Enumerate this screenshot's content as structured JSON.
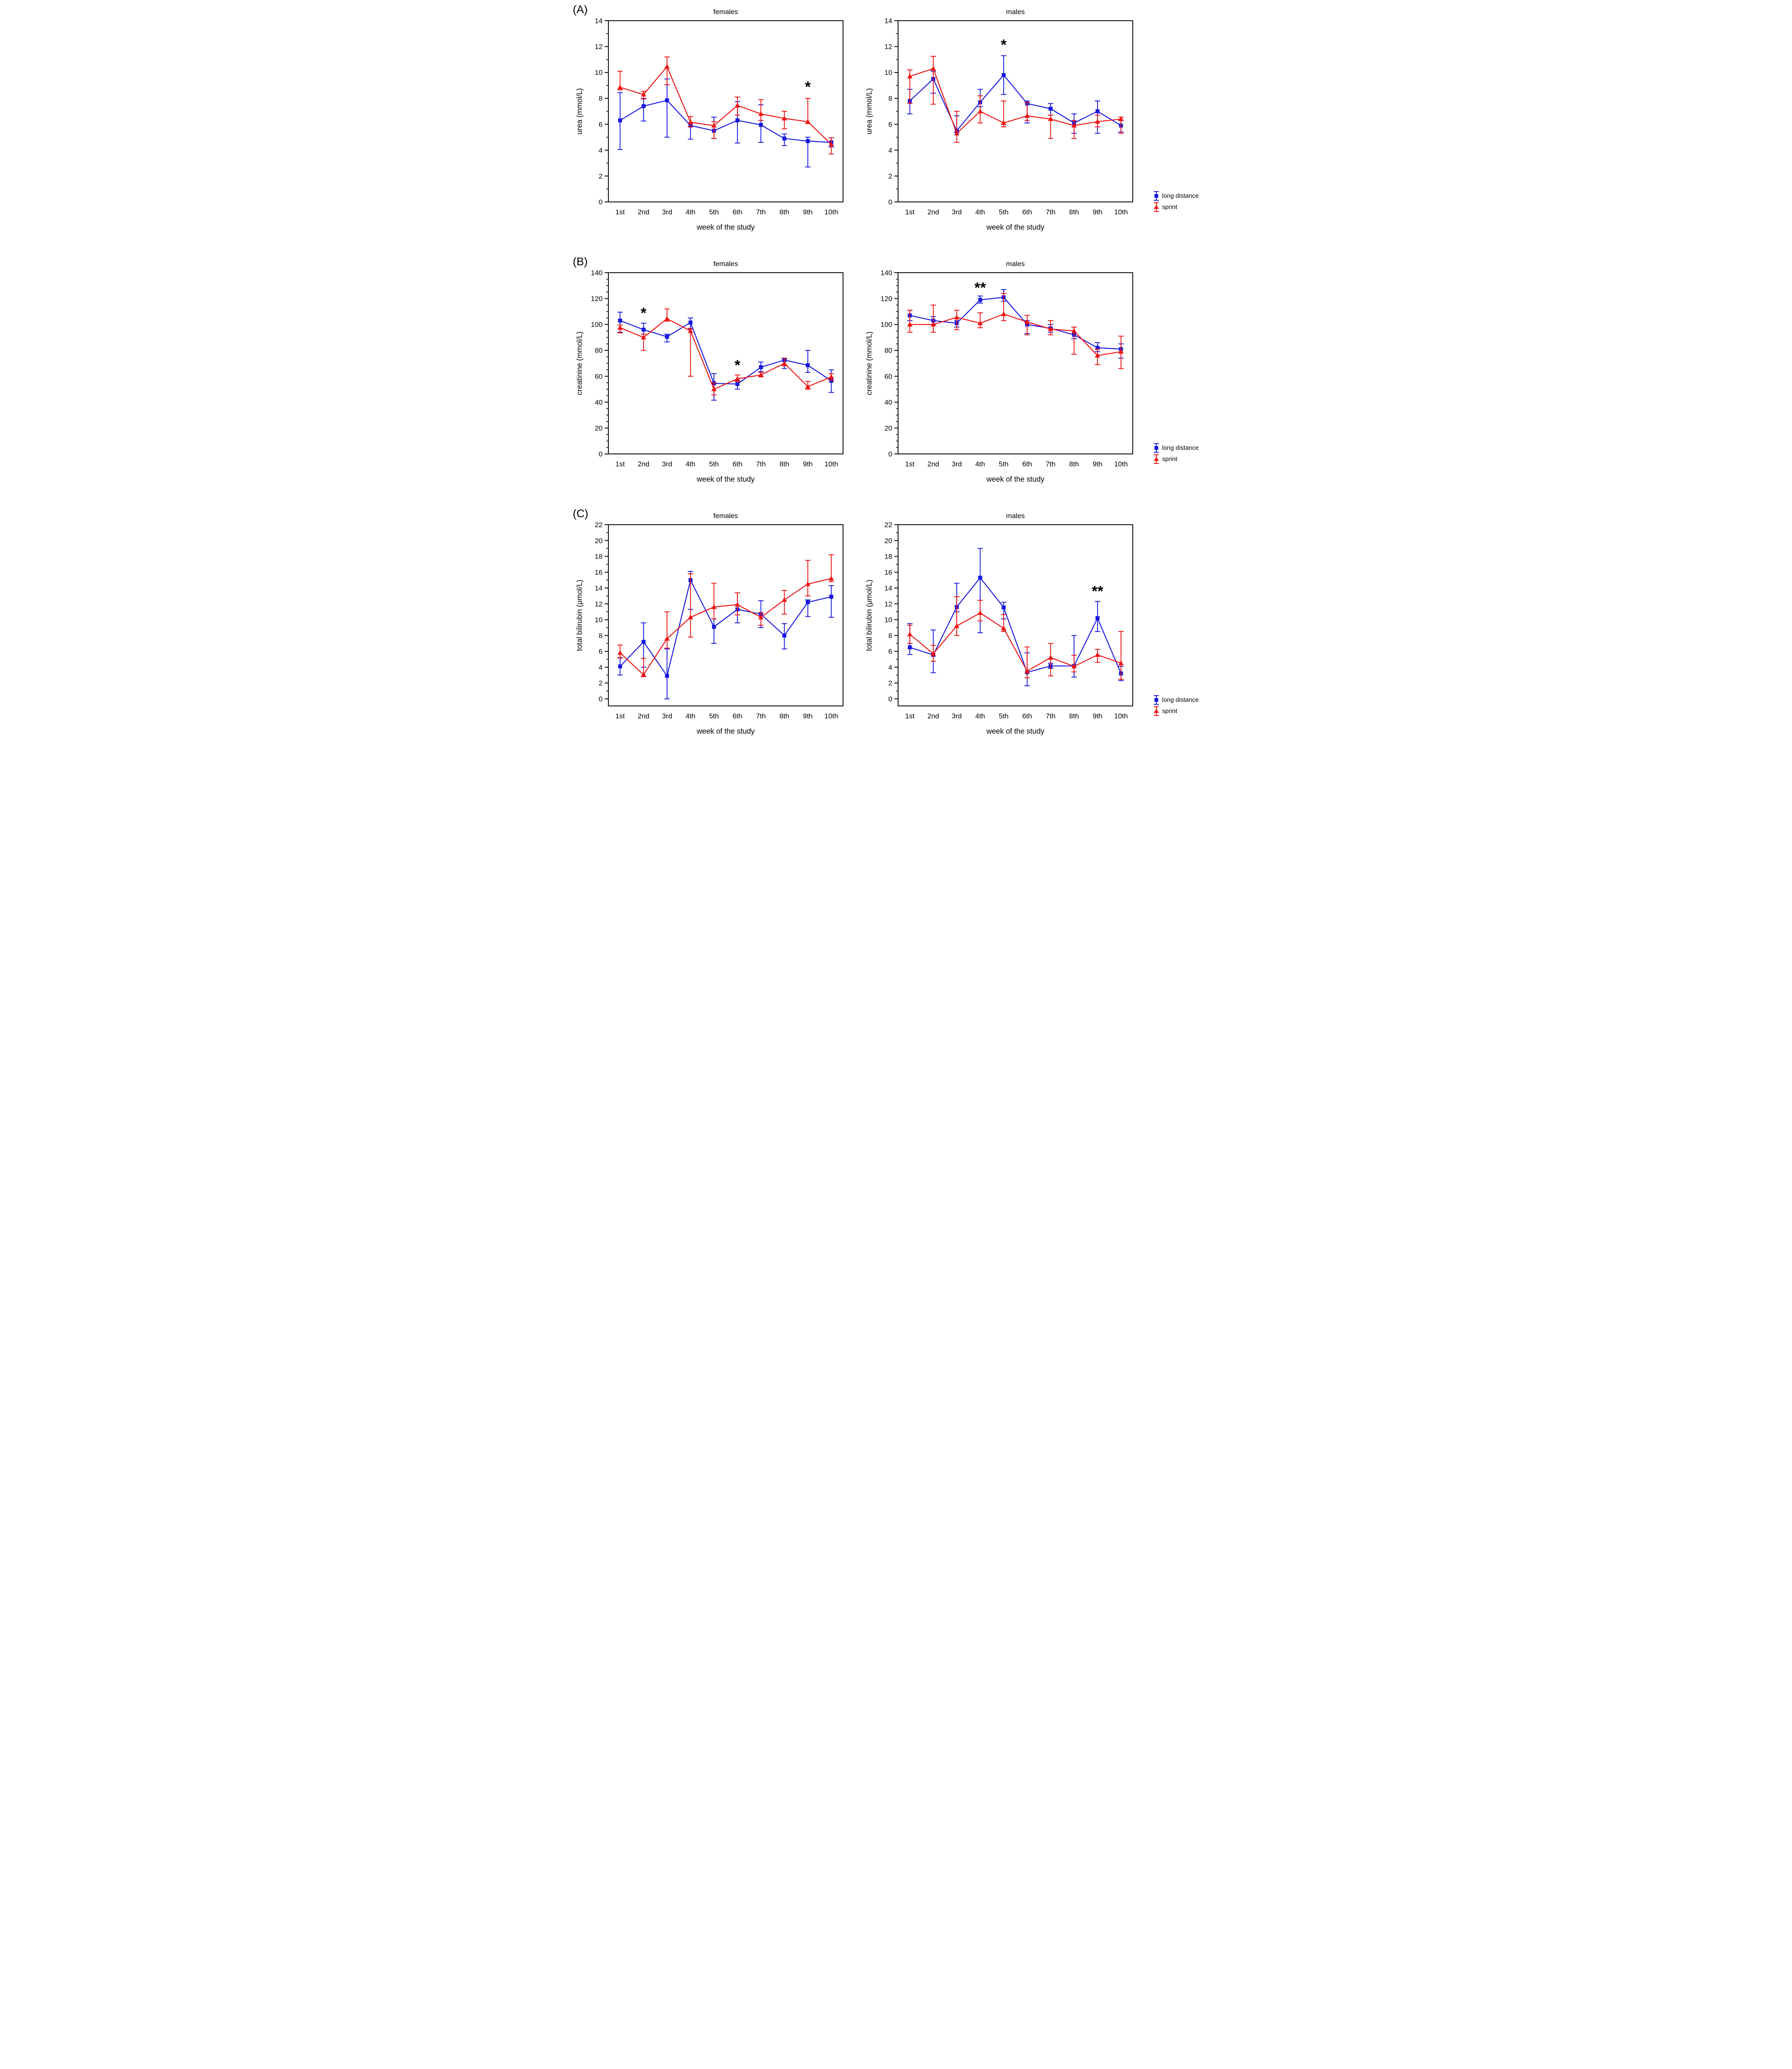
{
  "figure": {
    "panel_labels": [
      "(A)",
      "(B)",
      "(C)"
    ]
  },
  "legend": {
    "items": [
      {
        "label": "long distance",
        "color": "#1717e0",
        "marker": "square"
      },
      {
        "label": "sprint",
        "color": "#ee1111",
        "marker": "triangle"
      }
    ]
  },
  "chart_data": [
    {
      "id": "urea-females",
      "panel": "A",
      "type": "line",
      "title": "females",
      "xlabel": "week of the study",
      "ylabel": "urea (mmol/L)",
      "ylim": [
        0,
        14
      ],
      "ytick_major": 2,
      "yminors_per_interval": 1,
      "grid": false,
      "legend_shown": false,
      "categories": [
        "1st",
        "2nd",
        "3rd",
        "4th",
        "5th",
        "6th",
        "7th",
        "8th",
        "9th",
        "10th"
      ],
      "series": [
        {
          "name": "long distance",
          "color": "#1717e0",
          "marker": "square",
          "values": [
            6.3,
            7.4,
            7.85,
            5.9,
            5.5,
            6.3,
            5.95,
            4.9,
            4.7,
            4.6
          ],
          "err_low": [
            4.05,
            6.25,
            5.0,
            4.85,
            4.9,
            4.55,
            4.6,
            4.35,
            2.7,
            4.25
          ],
          "err_high": [
            8.45,
            8.0,
            9.5,
            6.1,
            6.55,
            7.75,
            7.5,
            5.25,
            5.0,
            4.95
          ]
        },
        {
          "name": "sprint",
          "color": "#ee1111",
          "marker": "triangle",
          "values": [
            8.85,
            8.3,
            10.45,
            6.15,
            5.9,
            7.45,
            6.8,
            6.45,
            6.2,
            4.45
          ],
          "err_low": [
            8.65,
            7.95,
            9.05,
            5.8,
            4.9,
            6.7,
            6.3,
            5.65,
            6.05,
            3.7
          ],
          "err_high": [
            10.1,
            8.55,
            11.2,
            6.6,
            6.2,
            8.1,
            7.9,
            7.0,
            8.0,
            4.95
          ]
        }
      ],
      "annotations": [
        {
          "x_index": 8,
          "y": 8.9,
          "text": "*"
        }
      ]
    },
    {
      "id": "urea-males",
      "panel": "A",
      "type": "line",
      "title": "males",
      "xlabel": "week of the study",
      "ylabel": "urea (mmol/L)",
      "ylim": [
        0,
        14
      ],
      "ytick_major": 2,
      "yminors_per_interval": 1,
      "grid": false,
      "legend_shown": true,
      "categories": [
        "1st",
        "2nd",
        "3rd",
        "4th",
        "5th",
        "6th",
        "7th",
        "8th",
        "9th",
        "10th"
      ],
      "series": [
        {
          "name": "long distance",
          "color": "#1717e0",
          "marker": "square",
          "values": [
            7.8,
            9.5,
            5.5,
            7.7,
            9.8,
            7.6,
            7.2,
            6.1,
            7.0,
            5.9
          ],
          "err_low": [
            6.8,
            8.4,
            5.35,
            7.35,
            8.3,
            6.1,
            6.7,
            5.3,
            5.3,
            5.4
          ],
          "err_high": [
            8.7,
            10.1,
            6.65,
            8.7,
            11.3,
            7.8,
            7.6,
            6.8,
            7.8,
            6.3
          ]
        },
        {
          "name": "sprint",
          "color": "#ee1111",
          "marker": "triangle",
          "values": [
            9.7,
            10.3,
            5.3,
            7.0,
            6.1,
            6.65,
            6.4,
            5.9,
            6.2,
            6.4
          ],
          "err_low": [
            7.6,
            7.55,
            4.6,
            6.1,
            5.8,
            6.3,
            4.9,
            4.9,
            5.8,
            5.3
          ],
          "err_high": [
            10.2,
            11.25,
            7.0,
            8.2,
            7.8,
            7.7,
            6.7,
            6.3,
            6.7,
            6.55
          ]
        }
      ],
      "annotations": [
        {
          "x_index": 4,
          "y": 12.15,
          "text": "*"
        }
      ]
    },
    {
      "id": "creatinine-females",
      "panel": "B",
      "type": "line",
      "title": "females",
      "xlabel": "week of the study",
      "ylabel": "creatinine (mmol/L)",
      "ylim": [
        0,
        140
      ],
      "ytick_major": 20,
      "yminors_per_interval": 3,
      "grid": false,
      "legend_shown": false,
      "categories": [
        "1st",
        "2nd",
        "3rd",
        "4th",
        "5th",
        "6th",
        "7th",
        "8th",
        "9th",
        "10th"
      ],
      "series": [
        {
          "name": "long distance",
          "color": "#1717e0",
          "marker": "square",
          "values": [
            103,
            96,
            90.5,
            101.5,
            54.5,
            54,
            67,
            72.5,
            68.5,
            56.5
          ],
          "err_low": [
            94,
            92.5,
            86.5,
            96.5,
            41.5,
            50,
            63.5,
            66,
            63,
            47.5
          ],
          "err_high": [
            109.5,
            101,
            92.5,
            105,
            62,
            56.5,
            71,
            73.5,
            80,
            65
          ]
        },
        {
          "name": "sprint",
          "color": "#ee1111",
          "marker": "triangle",
          "values": [
            97.5,
            90,
            104.5,
            95,
            50,
            58,
            61,
            70,
            52,
            59.5
          ],
          "err_low": [
            93.5,
            80,
            102.5,
            60,
            45.5,
            56,
            59.5,
            68,
            50,
            57
          ],
          "err_high": [
            99.5,
            92.5,
            112,
            97,
            55,
            61,
            63,
            74,
            56,
            62
          ]
        }
      ],
      "annotations": [
        {
          "x_index": 1,
          "y": 109,
          "text": "*"
        },
        {
          "x_index": 5,
          "y": 68.5,
          "text": "*"
        }
      ]
    },
    {
      "id": "creatinine-males",
      "panel": "B",
      "type": "line",
      "title": "males",
      "xlabel": "week of the study",
      "ylabel": "creatinine (mmol/L)",
      "ylim": [
        0,
        140
      ],
      "ytick_major": 20,
      "yminors_per_interval": 3,
      "grid": false,
      "legend_shown": true,
      "categories": [
        "1st",
        "2nd",
        "3rd",
        "4th",
        "5th",
        "6th",
        "7th",
        "8th",
        "9th",
        "10th"
      ],
      "series": [
        {
          "name": "long distance",
          "color": "#1717e0",
          "marker": "square",
          "values": [
            107,
            103,
            101,
            119,
            121,
            100,
            97,
            92,
            82,
            81
          ],
          "err_low": [
            103,
            100,
            98,
            116.5,
            118,
            93,
            94,
            89,
            79,
            74
          ],
          "err_high": [
            111,
            106,
            103,
            122,
            127,
            103,
            100,
            98,
            86,
            85
          ]
        },
        {
          "name": "sprint",
          "color": "#ee1111",
          "marker": "triangle",
          "values": [
            100,
            100,
            105.5,
            101,
            108,
            102,
            96.5,
            95,
            76,
            79
          ],
          "err_low": [
            94,
            94,
            96,
            97.5,
            103,
            92,
            92,
            77,
            69,
            66
          ],
          "err_high": [
            111,
            115,
            111,
            109,
            124,
            107,
            103,
            98,
            81,
            91
          ]
        }
      ],
      "annotations": [
        {
          "x_index": 3,
          "y": 128.5,
          "text": "**"
        }
      ]
    },
    {
      "id": "total-bilirubin-females",
      "panel": "C",
      "type": "line",
      "title": "females",
      "xlabel": "week of the study",
      "ylabel": "total bilirubin (μmol/L)",
      "ylim": [
        -0.9,
        22
      ],
      "ytick_major": 2,
      "yminors_per_interval": 1,
      "grid": false,
      "legend_shown": false,
      "categories": [
        "1st",
        "2nd",
        "3rd",
        "4th",
        "5th",
        "6th",
        "7th",
        "8th",
        "9th",
        "10th"
      ],
      "series": [
        {
          "name": "long distance",
          "color": "#1717e0",
          "marker": "square",
          "values": [
            4.1,
            7.2,
            2.9,
            15.0,
            9.1,
            11.3,
            10.7,
            8.0,
            12.2,
            12.9
          ],
          "err_low": [
            3.0,
            4.0,
            0.0,
            11.3,
            7.0,
            9.6,
            9.0,
            6.3,
            10.4,
            10.3
          ],
          "err_high": [
            5.2,
            9.6,
            6.3,
            16.1,
            10.1,
            13.4,
            12.4,
            9.5,
            12.5,
            14.3
          ]
        },
        {
          "name": "sprint",
          "color": "#ee1111",
          "marker": "triangle",
          "values": [
            5.8,
            3.05,
            7.6,
            10.3,
            11.6,
            11.9,
            10.3,
            12.5,
            14.5,
            15.2
          ],
          "err_low": [
            5.15,
            2.8,
            6.4,
            7.8,
            10.1,
            10.6,
            9.3,
            10.7,
            13.0,
            14.8
          ],
          "err_high": [
            6.8,
            5.1,
            11.0,
            15.8,
            14.6,
            13.4,
            10.9,
            13.7,
            17.5,
            18.2
          ]
        }
      ],
      "annotations": []
    },
    {
      "id": "total-bilirubin-males",
      "panel": "C",
      "type": "line",
      "title": "males",
      "xlabel": "week of the study",
      "ylabel": "total bilirubin (μmol/L)",
      "ylim": [
        -0.9,
        22
      ],
      "ytick_major": 2,
      "yminors_per_interval": 1,
      "grid": false,
      "legend_shown": true,
      "categories": [
        "1st",
        "2nd",
        "3rd",
        "4th",
        "5th",
        "6th",
        "7th",
        "8th",
        "9th",
        "10th"
      ],
      "series": [
        {
          "name": "long distance",
          "color": "#1717e0",
          "marker": "square",
          "values": [
            6.5,
            5.55,
            11.6,
            15.3,
            11.55,
            3.35,
            4.15,
            4.15,
            10.2,
            3.2
          ],
          "err_low": [
            5.6,
            3.3,
            11.0,
            8.35,
            10.1,
            1.65,
            3.85,
            2.75,
            8.5,
            2.3
          ],
          "err_high": [
            9.5,
            8.7,
            14.6,
            19.0,
            12.2,
            5.8,
            4.5,
            8.0,
            12.3,
            4.1
          ]
        },
        {
          "name": "sprint",
          "color": "#ee1111",
          "marker": "triangle",
          "values": [
            8.15,
            5.7,
            9.2,
            10.85,
            8.9,
            3.5,
            5.2,
            4.1,
            5.55,
            4.5
          ],
          "err_low": [
            7.0,
            4.75,
            8.0,
            9.85,
            8.5,
            2.65,
            2.9,
            3.4,
            4.6,
            2.45
          ],
          "err_high": [
            9.3,
            6.75,
            12.9,
            12.45,
            10.65,
            6.55,
            7.0,
            5.5,
            6.25,
            8.5
          ]
        }
      ],
      "annotations": [
        {
          "x_index": 8,
          "y": 13.6,
          "text": "**"
        }
      ]
    }
  ]
}
